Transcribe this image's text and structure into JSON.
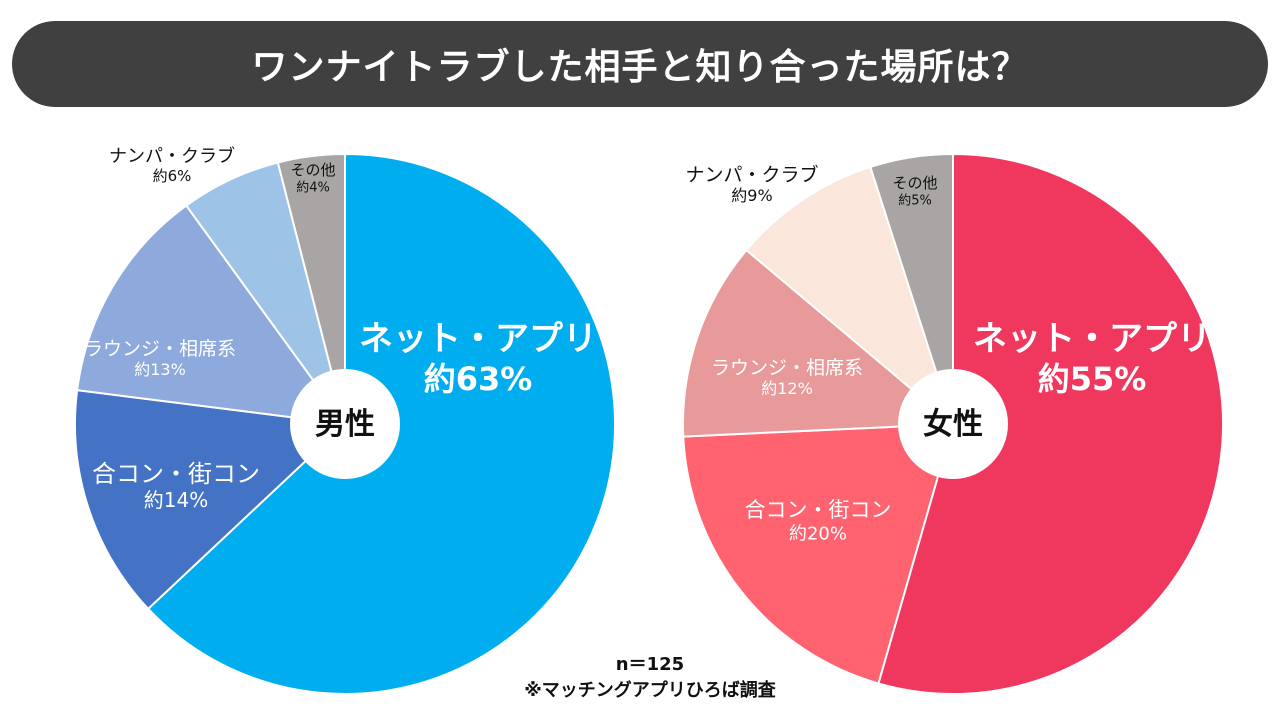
{
  "title": "ワンナイトラブした相手と知り合った場所は？",
  "chart_data": [
    {
      "type": "pie",
      "center_label": "男性",
      "slices": [
        {
          "name": "ネット・アプリ",
          "label": "約63%",
          "value": 63,
          "color": "#00AEEF"
        },
        {
          "name": "合コン・街コン",
          "label": "約14%",
          "value": 14,
          "color": "#4472C4"
        },
        {
          "name": "ラウンジ・相席系",
          "label": "約13%",
          "value": 13,
          "color": "#8EA9DB"
        },
        {
          "name": "ナンパ・クラブ",
          "label": "約6%",
          "value": 6,
          "color": "#9DC3E6"
        },
        {
          "name": "その他",
          "label": "約4%",
          "value": 4,
          "color": "#A9A5A5"
        }
      ]
    },
    {
      "type": "pie",
      "center_label": "女性",
      "slices": [
        {
          "name": "ネット・アプリ",
          "label": "約55%",
          "value": 55,
          "color": "#F0385E"
        },
        {
          "name": "合コン・街コン",
          "label": "約20%",
          "value": 20,
          "color": "#FF6370"
        },
        {
          "name": "ラウンジ・相席系",
          "label": "約12%",
          "value": 12,
          "color": "#E89A9A"
        },
        {
          "name": "ナンパ・クラブ",
          "label": "約9%",
          "value": 9,
          "color": "#FAE6DA"
        },
        {
          "name": "その他",
          "label": "約5%",
          "value": 5,
          "color": "#A9A5A5"
        }
      ]
    }
  ],
  "footnote": {
    "sample": "n＝125",
    "source": "※マッチングアプリひろば調査"
  }
}
